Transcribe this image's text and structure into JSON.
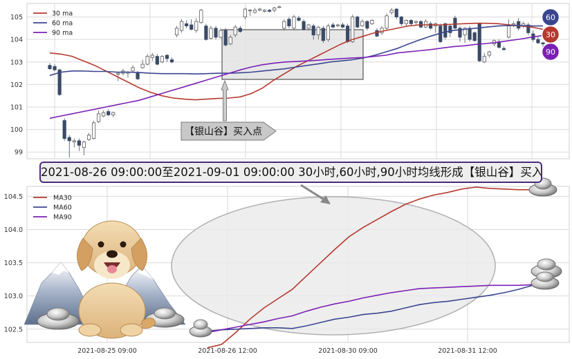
{
  "banner_text": "2021-08-26 09:00:00至2021-09-01 09:00:00 30小时,60小时,90小时均线形成【银山谷】买入点",
  "arrow_label": "【银山谷】买入点",
  "colors": {
    "ma30": "#b5382e",
    "ma60": "#3a4590",
    "ma90": "#7a1fb5",
    "candle_down": "#3a4a66",
    "grid": "#d9d9d9",
    "box_fill": "#e3e3e3"
  },
  "badges": [
    {
      "label": "60",
      "color": "#3a4590"
    },
    {
      "label": "30",
      "color": "#b5382e"
    },
    {
      "label": "90",
      "color": "#7a1fb5"
    }
  ],
  "icons": [
    "dog-illustration",
    "mountain-illustration",
    "silver-ingot-icon"
  ],
  "chart_data": [
    {
      "type": "candlestick",
      "legend": [
        "30 ma",
        "60 ma",
        "90 ma"
      ],
      "legend_position": "top-left",
      "grid": true,
      "ylim": [
        98.7,
        105.6
      ],
      "yticks": [
        99,
        100,
        101,
        102,
        103,
        104,
        105
      ],
      "candles": [
        [
          102.85,
          102.7,
          102.95,
          102.65
        ],
        [
          102.8,
          102.65,
          102.9,
          102.6
        ],
        [
          102.65,
          101.55,
          102.7,
          101.5
        ],
        [
          100.4,
          99.6,
          100.5,
          99.5
        ],
        [
          99.65,
          99.5,
          99.75,
          98.75
        ],
        [
          99.45,
          99.5,
          99.6,
          99.2
        ],
        [
          99.5,
          99.3,
          99.6,
          99.05
        ],
        [
          99.2,
          99.45,
          99.5,
          98.85
        ],
        [
          99.55,
          99.75,
          99.85,
          99.5
        ],
        [
          99.6,
          100.3,
          100.4,
          99.55
        ],
        [
          100.35,
          100.7,
          100.85,
          100.3
        ],
        [
          100.6,
          100.75,
          100.85,
          100.55
        ],
        [
          100.8,
          100.65,
          100.9,
          100.6
        ],
        [
          100.65,
          100.75,
          100.8,
          100.55
        ],
        [
          102.45,
          102.5,
          102.55,
          102.15
        ],
        [
          102.5,
          102.6,
          102.7,
          102.4
        ],
        [
          102.5,
          102.55,
          102.6,
          102.3
        ],
        [
          102.6,
          102.75,
          102.85,
          102.55
        ],
        [
          102.5,
          102.25,
          102.6,
          102.2
        ],
        [
          102.75,
          102.9,
          103.1,
          102.7
        ],
        [
          102.9,
          103.25,
          103.35,
          102.85
        ],
        [
          103.2,
          103.3,
          103.4,
          103.05
        ],
        [
          103.25,
          102.9,
          103.35,
          102.85
        ],
        [
          103.0,
          103.25,
          103.3,
          102.95
        ],
        [
          103.3,
          103.15,
          103.35,
          103.0
        ],
        [
          103.1,
          103.0,
          103.2,
          102.95
        ],
        [
          104.2,
          104.5,
          104.6,
          104.1
        ],
        [
          104.4,
          104.8,
          104.9,
          104.3
        ],
        [
          104.7,
          104.6,
          104.85,
          104.5
        ],
        [
          104.65,
          104.45,
          104.9,
          104.4
        ],
        [
          104.4,
          104.8,
          104.95,
          104.3
        ],
        [
          104.75,
          105.3,
          105.35,
          104.7
        ],
        [
          104.6,
          104.0,
          104.7,
          103.95
        ],
        [
          104.05,
          104.5,
          104.6,
          104.0
        ],
        [
          104.5,
          104.1,
          104.6,
          104.0
        ],
        [
          104.1,
          104.4,
          104.5,
          104.05
        ],
        [
          104.4,
          103.75,
          104.5,
          103.7
        ],
        [
          103.8,
          104.1,
          104.2,
          103.75
        ],
        [
          104.2,
          104.55,
          104.65,
          104.1
        ],
        [
          104.5,
          104.35,
          104.6,
          104.3
        ],
        [
          105.0,
          105.35,
          105.4,
          104.9
        ],
        [
          105.3,
          105.3,
          105.35,
          105.05
        ],
        [
          105.2,
          105.3,
          105.4,
          105.15
        ],
        [
          105.3,
          105.35,
          105.4,
          105.25
        ],
        [
          105.25,
          105.3,
          105.35,
          105.2
        ],
        [
          105.3,
          105.25,
          105.35,
          105.2
        ],
        [
          105.3,
          105.4,
          105.45,
          105.2
        ],
        [
          105.45,
          105.45,
          105.5,
          105.4
        ],
        [
          104.5,
          104.8,
          104.9,
          104.4
        ],
        [
          104.9,
          104.6,
          105.0,
          104.5
        ],
        [
          104.5,
          105.0,
          105.1,
          104.45
        ],
        [
          104.95,
          104.85,
          105.05,
          104.8
        ],
        [
          104.8,
          104.45,
          104.9,
          104.4
        ],
        [
          104.5,
          104.65,
          104.7,
          104.4
        ],
        [
          104.6,
          104.2,
          104.7,
          104.0
        ],
        [
          104.2,
          104.55,
          104.6,
          104.0
        ],
        [
          104.5,
          103.95,
          104.6,
          103.85
        ],
        [
          104.0,
          104.6,
          104.7,
          103.9
        ],
        [
          104.65,
          104.55,
          104.75,
          104.5
        ],
        [
          104.6,
          104.65,
          104.7,
          104.55
        ],
        [
          104.65,
          104.55,
          104.75,
          104.5
        ],
        [
          104.6,
          103.9,
          104.7,
          103.85
        ],
        [
          103.9,
          105.0,
          105.1,
          103.85
        ],
        [
          105.0,
          104.55,
          105.05,
          104.5
        ],
        [
          104.6,
          104.8,
          104.9,
          104.55
        ],
        [
          104.8,
          104.5,
          104.85,
          104.4
        ],
        [
          104.7,
          104.85,
          104.9,
          104.65
        ],
        [
          104.4,
          104.15,
          104.5,
          104.1
        ],
        [
          104.3,
          104.5,
          104.6,
          104.2
        ],
        [
          104.5,
          105.05,
          105.15,
          104.4
        ],
        [
          105.2,
          105.3,
          105.4,
          105.1
        ],
        [
          105.35,
          105.0,
          105.4,
          104.9
        ],
        [
          105.0,
          104.7,
          105.05,
          104.6
        ],
        [
          104.7,
          104.85,
          104.9,
          104.6
        ],
        [
          104.85,
          104.7,
          104.9,
          104.6
        ],
        [
          104.75,
          104.8,
          104.85,
          104.65
        ],
        [
          104.8,
          104.55,
          104.85,
          104.5
        ],
        [
          104.55,
          104.8,
          104.9,
          104.5
        ],
        [
          104.7,
          104.5,
          104.8,
          104.45
        ],
        [
          104.6,
          104.7,
          104.75,
          104.3
        ],
        [
          104.6,
          103.9,
          104.7,
          103.85
        ],
        [
          104.7,
          104.1,
          104.75,
          104.0
        ],
        [
          104.6,
          104.3,
          104.65,
          104.1
        ],
        [
          104.95,
          104.5,
          105.05,
          104.45
        ],
        [
          104.5,
          104.1,
          104.6,
          103.9
        ],
        [
          104.2,
          104.5,
          104.55,
          103.85
        ],
        [
          104.5,
          104.0,
          104.6,
          103.9
        ],
        [
          104.3,
          103.95,
          104.35,
          103.9
        ],
        [
          104.7,
          103.05,
          104.75,
          103.0
        ],
        [
          103.0,
          103.25,
          103.4,
          102.95
        ],
        [
          103.3,
          103.45,
          103.5,
          103.2
        ],
        [
          103.8,
          103.95,
          104.0,
          103.7
        ],
        [
          103.9,
          103.65,
          104.0,
          103.6
        ],
        [
          103.6,
          103.55,
          103.7,
          103.5
        ],
        [
          104.1,
          104.6,
          104.9,
          104.05
        ],
        [
          104.65,
          104.7,
          104.8,
          104.55
        ],
        [
          104.8,
          104.5,
          104.95,
          104.4
        ],
        [
          104.6,
          104.7,
          104.8,
          104.5
        ],
        [
          104.65,
          104.3,
          104.75,
          104.2
        ],
        [
          104.25,
          104.0,
          104.4,
          103.9
        ],
        [
          104.0,
          103.85,
          104.1,
          103.8
        ],
        [
          103.85,
          103.8,
          103.9,
          103.6
        ]
      ],
      "series": [
        {
          "name": "30 ma",
          "values": [
            103.4,
            103.35,
            103.25,
            103.05,
            102.85,
            102.6,
            102.35,
            102.1,
            101.85,
            101.65,
            101.5,
            101.4,
            101.35,
            101.32,
            101.35,
            101.38,
            101.4,
            101.45,
            101.6,
            101.85,
            102.2,
            102.5,
            102.8,
            103.05,
            103.3,
            103.55,
            103.8,
            104.0,
            104.15,
            104.3,
            104.4,
            104.5,
            104.6,
            104.65,
            104.65,
            104.65,
            104.68,
            104.7,
            104.72,
            104.72,
            104.7,
            104.65,
            104.6,
            104.55,
            104.45
          ]
        },
        {
          "name": "60 ma",
          "values": [
            102.4,
            102.55,
            102.6,
            102.6,
            102.58,
            102.58,
            102.55,
            102.55,
            102.53,
            102.5,
            102.48,
            102.48,
            102.48,
            102.47,
            102.48,
            102.5,
            102.5,
            102.52,
            102.55,
            102.6,
            102.65,
            102.7,
            102.78,
            102.85,
            102.92,
            103.0,
            103.05,
            103.1,
            103.18,
            103.3,
            103.45,
            103.6,
            103.8,
            103.98,
            104.15,
            104.3,
            104.4,
            104.45,
            104.5,
            104.55,
            104.6,
            104.62,
            104.62,
            104.6,
            104.6
          ]
        },
        {
          "name": "90 ma",
          "values": [
            100.5,
            100.6,
            100.7,
            100.8,
            100.9,
            101.0,
            101.1,
            101.2,
            101.3,
            101.45,
            101.6,
            101.75,
            101.9,
            102.05,
            102.2,
            102.35,
            102.5,
            102.65,
            102.78,
            102.88,
            102.95,
            103.0,
            103.02,
            103.05,
            103.08,
            103.12,
            103.15,
            103.18,
            103.2,
            103.25,
            103.3,
            103.4,
            103.45,
            103.5,
            103.55,
            103.62,
            103.68,
            103.72,
            103.78,
            103.82,
            103.88,
            103.95,
            104.02,
            104.1,
            104.18
          ]
        }
      ],
      "highlight": {
        "label": "【银山谷】买入点"
      }
    },
    {
      "type": "line",
      "legend": [
        "MA30",
        "MA60",
        "MA90"
      ],
      "legend_position": "top-left",
      "grid": true,
      "ylim": [
        102.3,
        104.65
      ],
      "yticks": [
        102.5,
        103.0,
        103.5,
        104.0,
        104.5
      ],
      "x_tick_labels": [
        "2021-08-25 09:00",
        "2021-08-26 12:00",
        "2021-08-30 09:00",
        "2021-08-31 12:00"
      ],
      "series": [
        {
          "name": "MA30",
          "values": [
            102.22,
            102.27,
            102.45,
            102.65,
            102.82,
            102.96,
            103.1,
            103.3,
            103.5,
            103.7,
            103.89,
            104.03,
            104.15,
            104.27,
            104.38,
            104.46,
            104.52,
            104.56,
            104.61,
            104.64,
            104.62,
            104.61,
            104.6,
            104.6
          ]
        },
        {
          "name": "MA60",
          "values": [
            102.47,
            102.49,
            102.5,
            102.51,
            102.52,
            102.52,
            102.51,
            102.55,
            102.6,
            102.65,
            102.68,
            102.72,
            102.74,
            102.77,
            102.82,
            102.87,
            102.9,
            102.92,
            102.95,
            102.98,
            103.01,
            103.05,
            103.1,
            103.16
          ]
        },
        {
          "name": "MA90",
          "values": [
            102.45,
            102.49,
            102.53,
            102.57,
            102.61,
            102.66,
            102.7,
            102.77,
            102.83,
            102.88,
            102.92,
            102.97,
            103.01,
            103.05,
            103.08,
            103.11,
            103.12,
            103.13,
            103.14,
            103.15,
            103.16,
            103.16,
            103.16,
            103.17
          ]
        }
      ]
    }
  ]
}
